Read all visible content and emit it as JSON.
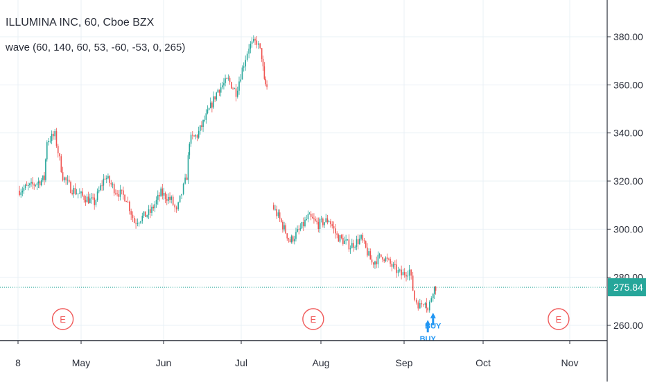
{
  "legend": {
    "symbol_line": "ILLUMINA INC, 60, Cboe BZX",
    "indicator_line": "wave (60, 140, 60, 53, -60, -53, 0, 265)"
  },
  "colors": {
    "up": "#26a69a",
    "down": "#ef5350",
    "grid": "#e9f0f6",
    "price_line": "#26a69a",
    "signal": "#2196f3",
    "earnings": "#f05a5a",
    "axis": "#2a2e39"
  },
  "chart_data": {
    "type": "candlestick",
    "x_labels": [
      "8",
      "May",
      "Jun",
      "Jul",
      "Aug",
      "Sep",
      "Oct",
      "Nov"
    ],
    "y_ticks": [
      "260.00",
      "280.00",
      "300.00",
      "320.00",
      "340.00",
      "360.00",
      "380.00"
    ],
    "ylim": [
      253,
      391
    ],
    "grid": true,
    "current_price": {
      "value": 275.84,
      "label": "275.84"
    },
    "earnings_markers": [
      {
        "date": "Apr 25",
        "label": "E"
      },
      {
        "date": "Jul 29",
        "label": "E"
      },
      {
        "date": "Oct 28",
        "label": "E"
      }
    ],
    "signals": [
      {
        "date": "Sep 10",
        "label": "BUY",
        "price": 264
      },
      {
        "date": "Sep 12",
        "label": "BUY",
        "price": 267
      }
    ],
    "price_path": [
      {
        "date": "Apr 8",
        "price": 316
      },
      {
        "date": "Apr 13",
        "price": 318
      },
      {
        "date": "Apr 18",
        "price": 321
      },
      {
        "date": "Apr 19",
        "price": 337
      },
      {
        "date": "Apr 22",
        "price": 339
      },
      {
        "date": "Apr 25",
        "price": 322
      },
      {
        "date": "Apr 28",
        "price": 317
      },
      {
        "date": "May 1",
        "price": 314
      },
      {
        "date": "May 6",
        "price": 311
      },
      {
        "date": "May 10",
        "price": 322
      },
      {
        "date": "May 14",
        "price": 316
      },
      {
        "date": "May 18",
        "price": 313
      },
      {
        "date": "May 21",
        "price": 303
      },
      {
        "date": "May 24",
        "price": 305
      },
      {
        "date": "May 27",
        "price": 307
      },
      {
        "date": "May 31",
        "price": 315
      },
      {
        "date": "Jun 4",
        "price": 312
      },
      {
        "date": "Jun 6",
        "price": 307
      },
      {
        "date": "Jun 8",
        "price": 315
      },
      {
        "date": "Jun 10",
        "price": 322
      },
      {
        "date": "Jun 11",
        "price": 337
      },
      {
        "date": "Jun 14",
        "price": 339
      },
      {
        "date": "Jun 18",
        "price": 348
      },
      {
        "date": "Jun 22",
        "price": 358
      },
      {
        "date": "Jun 26",
        "price": 362
      },
      {
        "date": "Jun 29",
        "price": 357
      },
      {
        "date": "Jul 2",
        "price": 369
      },
      {
        "date": "Jul 4",
        "price": 376
      },
      {
        "date": "Jul 7",
        "price": 378
      },
      {
        "date": "Jul 9",
        "price": 372
      },
      {
        "date": "Jul 10",
        "price": 361
      },
      {
        "date": "Jul 11",
        "price": 359
      },
      {
        "date": "Jul 13",
        "price": 310
      },
      {
        "date": "Jul 16",
        "price": 304
      },
      {
        "date": "Jul 20",
        "price": 295
      },
      {
        "date": "Jul 24",
        "price": 300
      },
      {
        "date": "Jul 27",
        "price": 305
      },
      {
        "date": "Jul 31",
        "price": 302
      },
      {
        "date": "Aug 4",
        "price": 304
      },
      {
        "date": "Aug 7",
        "price": 297
      },
      {
        "date": "Aug 12",
        "price": 293
      },
      {
        "date": "Aug 16",
        "price": 296
      },
      {
        "date": "Aug 20",
        "price": 286
      },
      {
        "date": "Aug 24",
        "price": 289
      },
      {
        "date": "Aug 28",
        "price": 284
      },
      {
        "date": "Aug 31",
        "price": 281
      },
      {
        "date": "Sep 3",
        "price": 283
      },
      {
        "date": "Sep 5",
        "price": 271
      },
      {
        "date": "Sep 7",
        "price": 268
      },
      {
        "date": "Sep 9",
        "price": 271
      },
      {
        "date": "Sep 10",
        "price": 266
      },
      {
        "date": "Sep 12",
        "price": 275
      },
      {
        "date": "Sep 13",
        "price": 276
      }
    ]
  }
}
